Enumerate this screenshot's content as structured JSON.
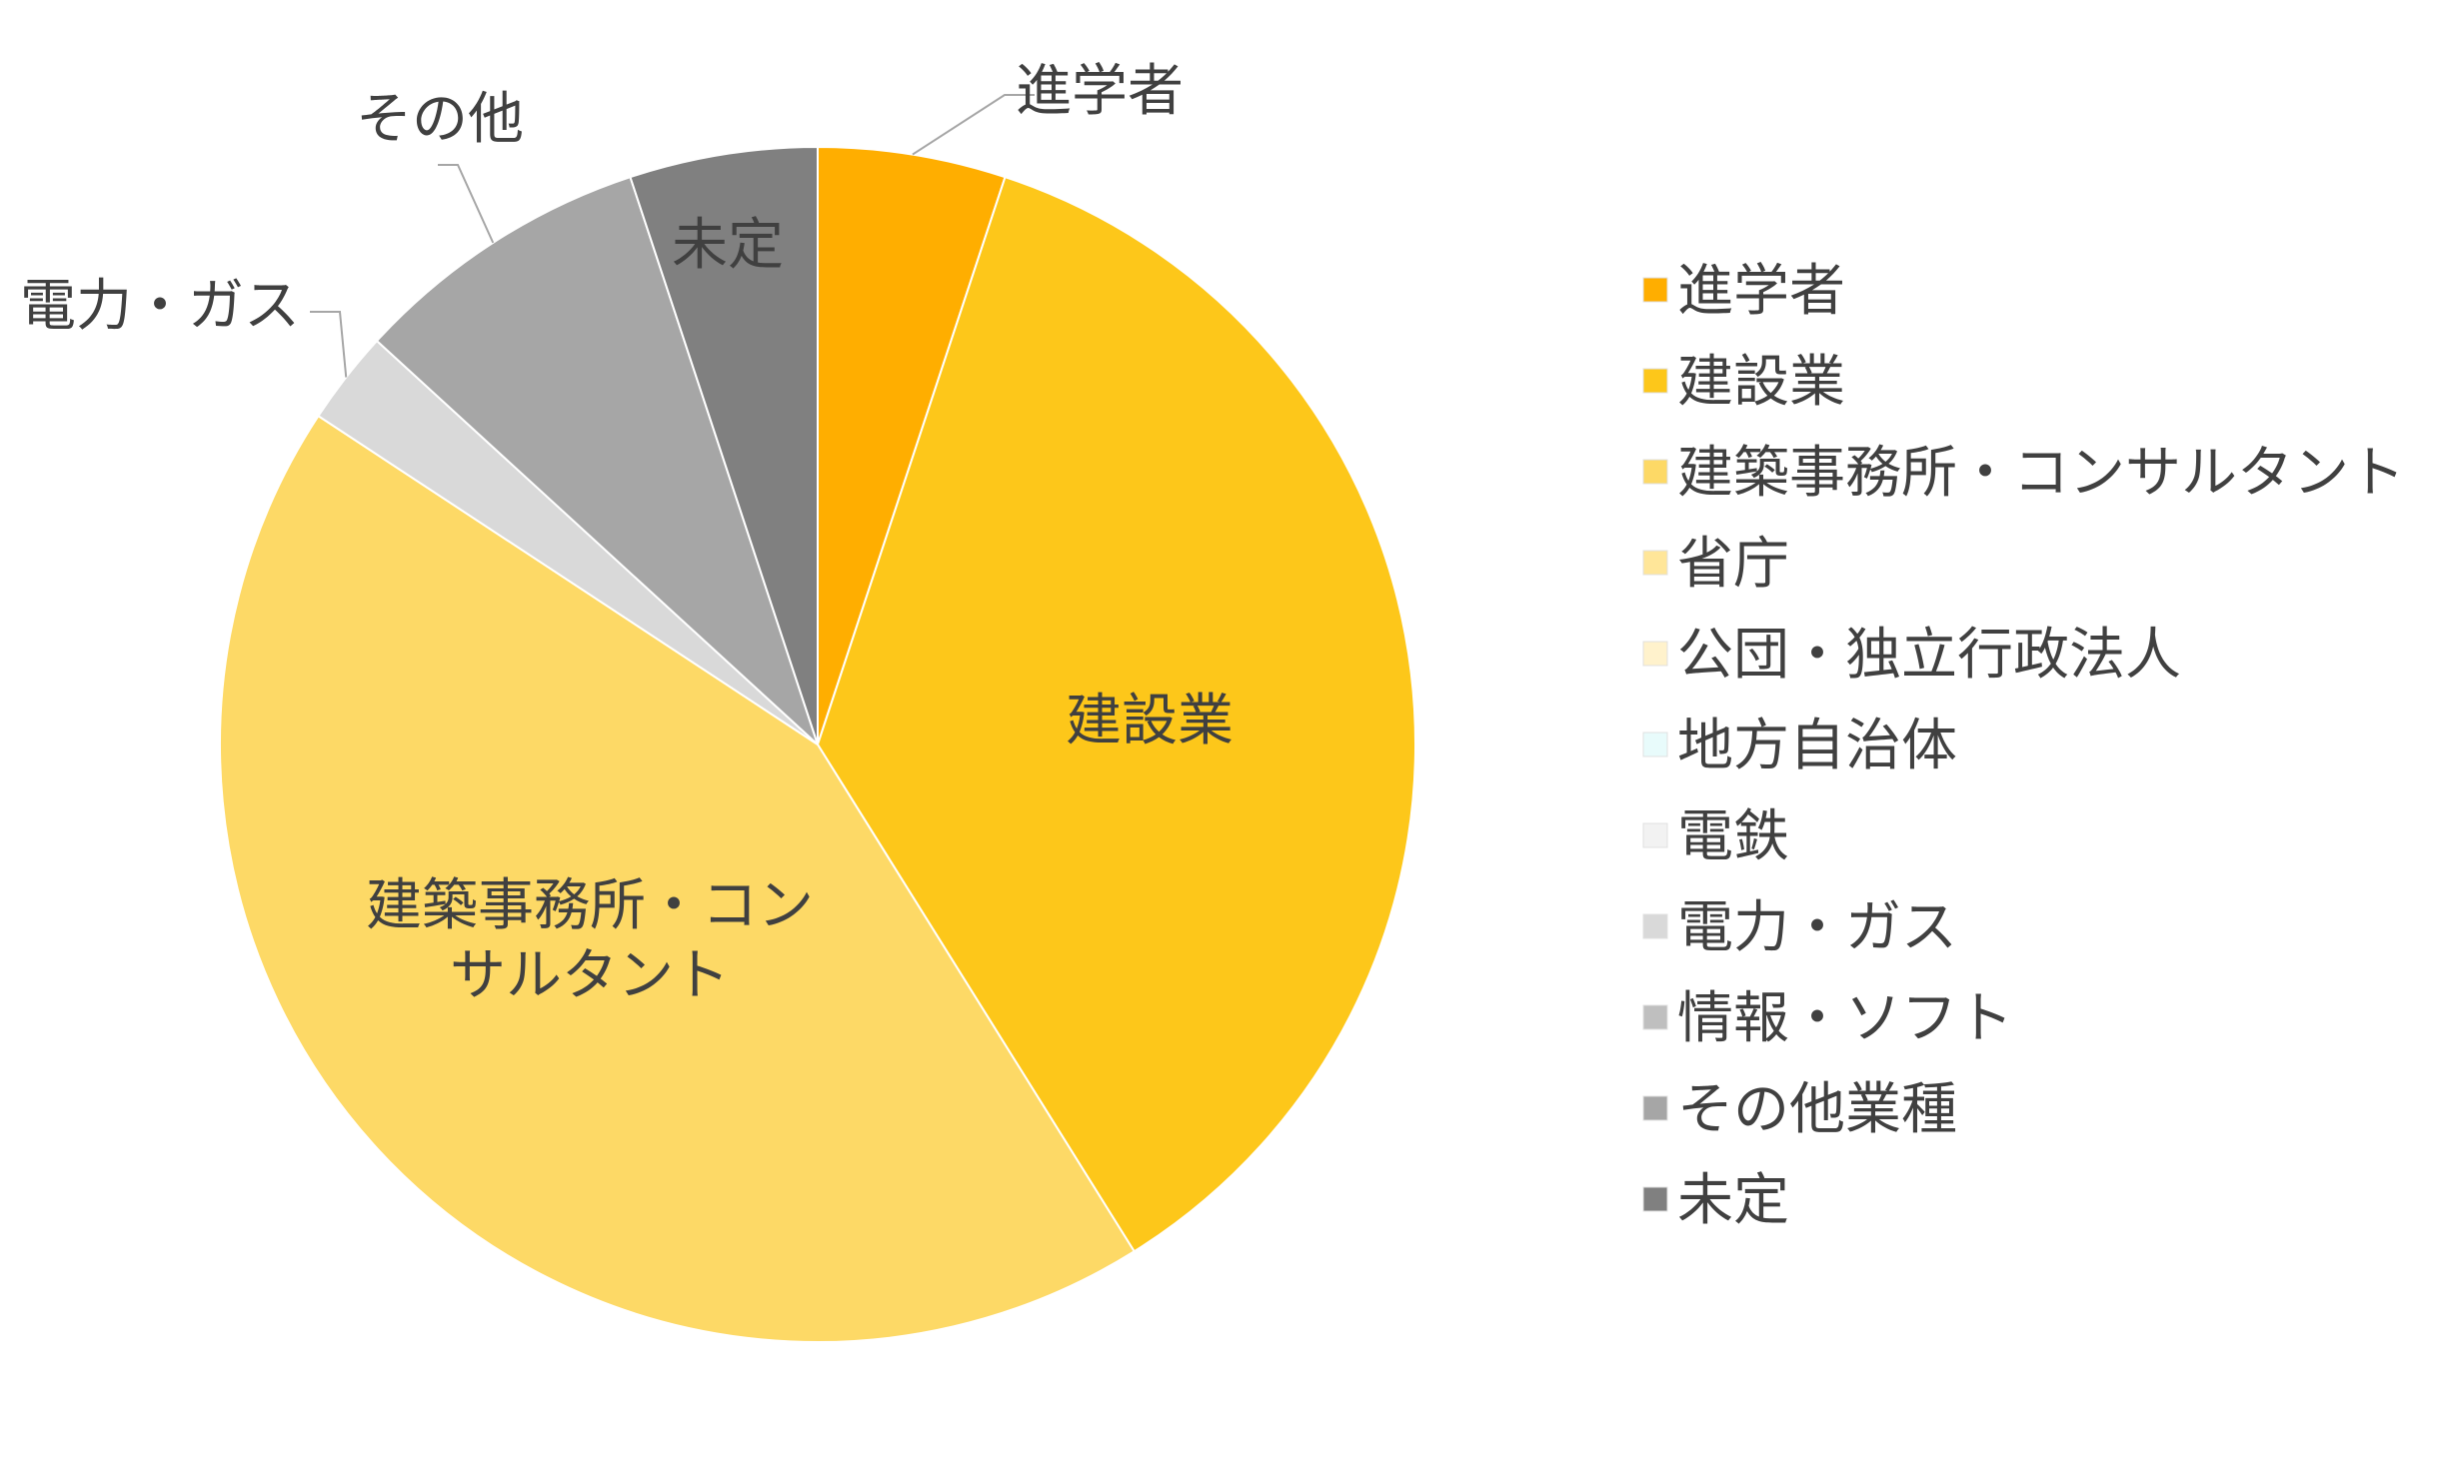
{
  "chart_data": {
    "type": "pie",
    "title": "",
    "legend_position": "right",
    "slices": [
      {
        "label": "進学者",
        "value": 5,
        "color": "#FFAE00"
      },
      {
        "label": "建設業",
        "value": 35.5,
        "color": "#FDC71A"
      },
      {
        "label": "建築事務所・コンサルタント",
        "value": 42.5,
        "color": "#FDD966"
      },
      {
        "label": "省庁",
        "value": 0,
        "color": "#FFE699"
      },
      {
        "label": "公団・独立行政法人",
        "value": 0,
        "color": "#FFF2CC"
      },
      {
        "label": "地方自治体",
        "value": 0,
        "color": "#E8FBFB"
      },
      {
        "label": "電鉄",
        "value": 0,
        "color": "#F2F2F2"
      },
      {
        "label": "電力・ガス",
        "value": 2.5,
        "color": "#D9D9D9"
      },
      {
        "label": "情報・ソフト",
        "value": 0,
        "color": "#BFBFBF"
      },
      {
        "label": "その他業種",
        "value": 8,
        "color": "#A6A6A6"
      },
      {
        "label": "未定",
        "value": 5,
        "color": "#808080"
      }
    ],
    "slice_labels": [
      {
        "slice": "進学者",
        "lines": [
          "進学者"
        ]
      },
      {
        "slice": "建設業",
        "lines": [
          "建設業"
        ]
      },
      {
        "slice": "建築事務所・コンサルタント",
        "lines": [
          "建築事務所・コン",
          "サルタント"
        ]
      },
      {
        "slice": "電力・ガス",
        "lines": [
          "電力・ガス"
        ]
      },
      {
        "slice": "その他業種",
        "lines": [
          "その他"
        ]
      },
      {
        "slice": "未定",
        "lines": [
          "未定"
        ]
      }
    ]
  }
}
